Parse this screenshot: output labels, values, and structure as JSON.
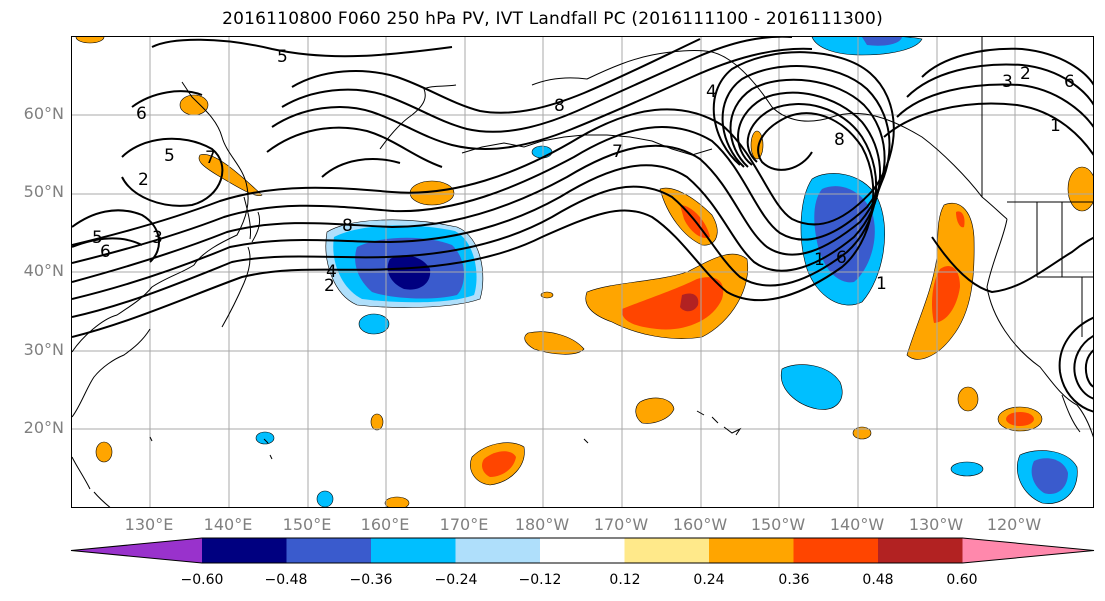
{
  "title": "2016110800 F060 250 hPa PV, IVT Landfall PC (2016111100 - 2016111300)",
  "map": {
    "projection": "equirectangular",
    "lat_labels": [
      "60°N",
      "50°N",
      "40°N",
      "30°N",
      "20°N"
    ],
    "lon_labels": [
      "130°E",
      "140°E",
      "150°E",
      "160°E",
      "170°E",
      "180°W",
      "170°W",
      "160°W",
      "150°W",
      "140°W",
      "130°W",
      "120°W"
    ],
    "pv_contour_labels": [
      "5",
      "6",
      "5",
      "2",
      "3",
      "5",
      "6",
      "7",
      "8",
      "4",
      "2",
      "8",
      "7",
      "4",
      "8",
      "1",
      "6",
      "1",
      "2",
      "3",
      "6",
      "1"
    ]
  },
  "colorbar": {
    "ticks": [
      "−0.60",
      "−0.48",
      "−0.36",
      "−0.24",
      "−0.12",
      "0.12",
      "0.24",
      "0.36",
      "0.48",
      "0.60"
    ],
    "colors": [
      "#9932cc",
      "#000080",
      "#3a5bcd",
      "#00bfff",
      "#afdffb",
      "#ffffff",
      "#ffe98a",
      "#ffa500",
      "#ff4500",
      "#b22222",
      "#ff88ac"
    ]
  }
}
